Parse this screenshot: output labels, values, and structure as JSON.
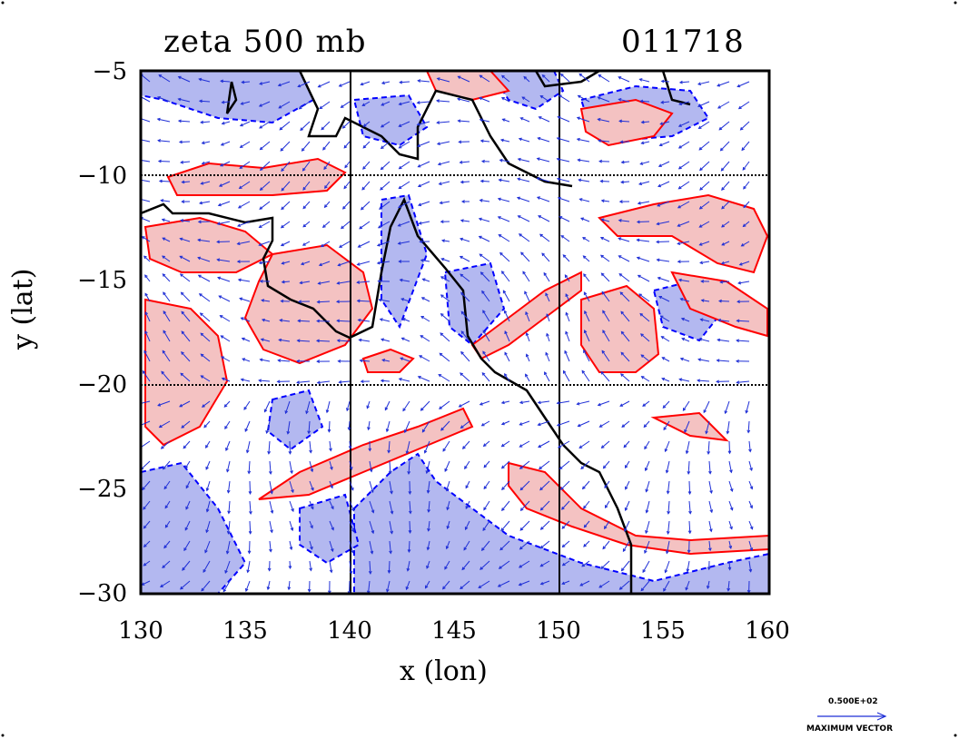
{
  "title": {
    "left": "zeta 500 mb",
    "right": "011718"
  },
  "axes": {
    "xlabel": "x (lon)",
    "ylabel": "y (lat)",
    "xlim": [
      130,
      160
    ],
    "ylim": [
      -30,
      -5
    ],
    "xticks": [
      "130",
      "135",
      "140",
      "145",
      "150",
      "155",
      "160"
    ],
    "yticks": [
      "−5",
      "−10",
      "−15",
      "−20",
      "−25",
      "−30"
    ],
    "grid_lon": [
      140,
      150
    ],
    "grid_lat": [
      -10,
      -20
    ]
  },
  "legend": {
    "vector_value": "0.500E+02",
    "vector_label": "MAXIMUM VECTOR"
  },
  "colors": {
    "positive_fill": "#f4c2c2",
    "positive_line": "#ff0000",
    "negative_fill": "#b3b8f0",
    "negative_line": "#0000ff",
    "vector": "#1f2fd6",
    "coast": "#000000"
  }
}
